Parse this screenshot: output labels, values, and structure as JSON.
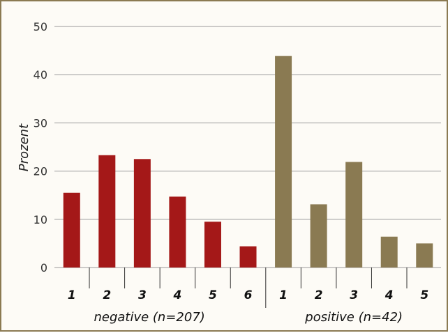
{
  "chart_data": {
    "type": "bar",
    "ylabel": "Prozent",
    "ylim": [
      0,
      50
    ],
    "yticks": [
      0,
      10,
      20,
      30,
      40,
      50
    ],
    "grid": true,
    "legend": "none",
    "groups": [
      {
        "name": "negative (n=207)",
        "color": "#a41818",
        "categories": [
          "1",
          "2",
          "3",
          "4",
          "5",
          "6"
        ],
        "values": [
          15.5,
          23.3,
          22.5,
          14.7,
          9.5,
          4.4
        ]
      },
      {
        "name": "positive (n=42)",
        "color": "#8a7a52",
        "categories": [
          "1",
          "2",
          "3",
          "4",
          "5"
        ],
        "values": [
          43.9,
          13.1,
          21.9,
          6.4,
          5.0
        ]
      }
    ]
  }
}
